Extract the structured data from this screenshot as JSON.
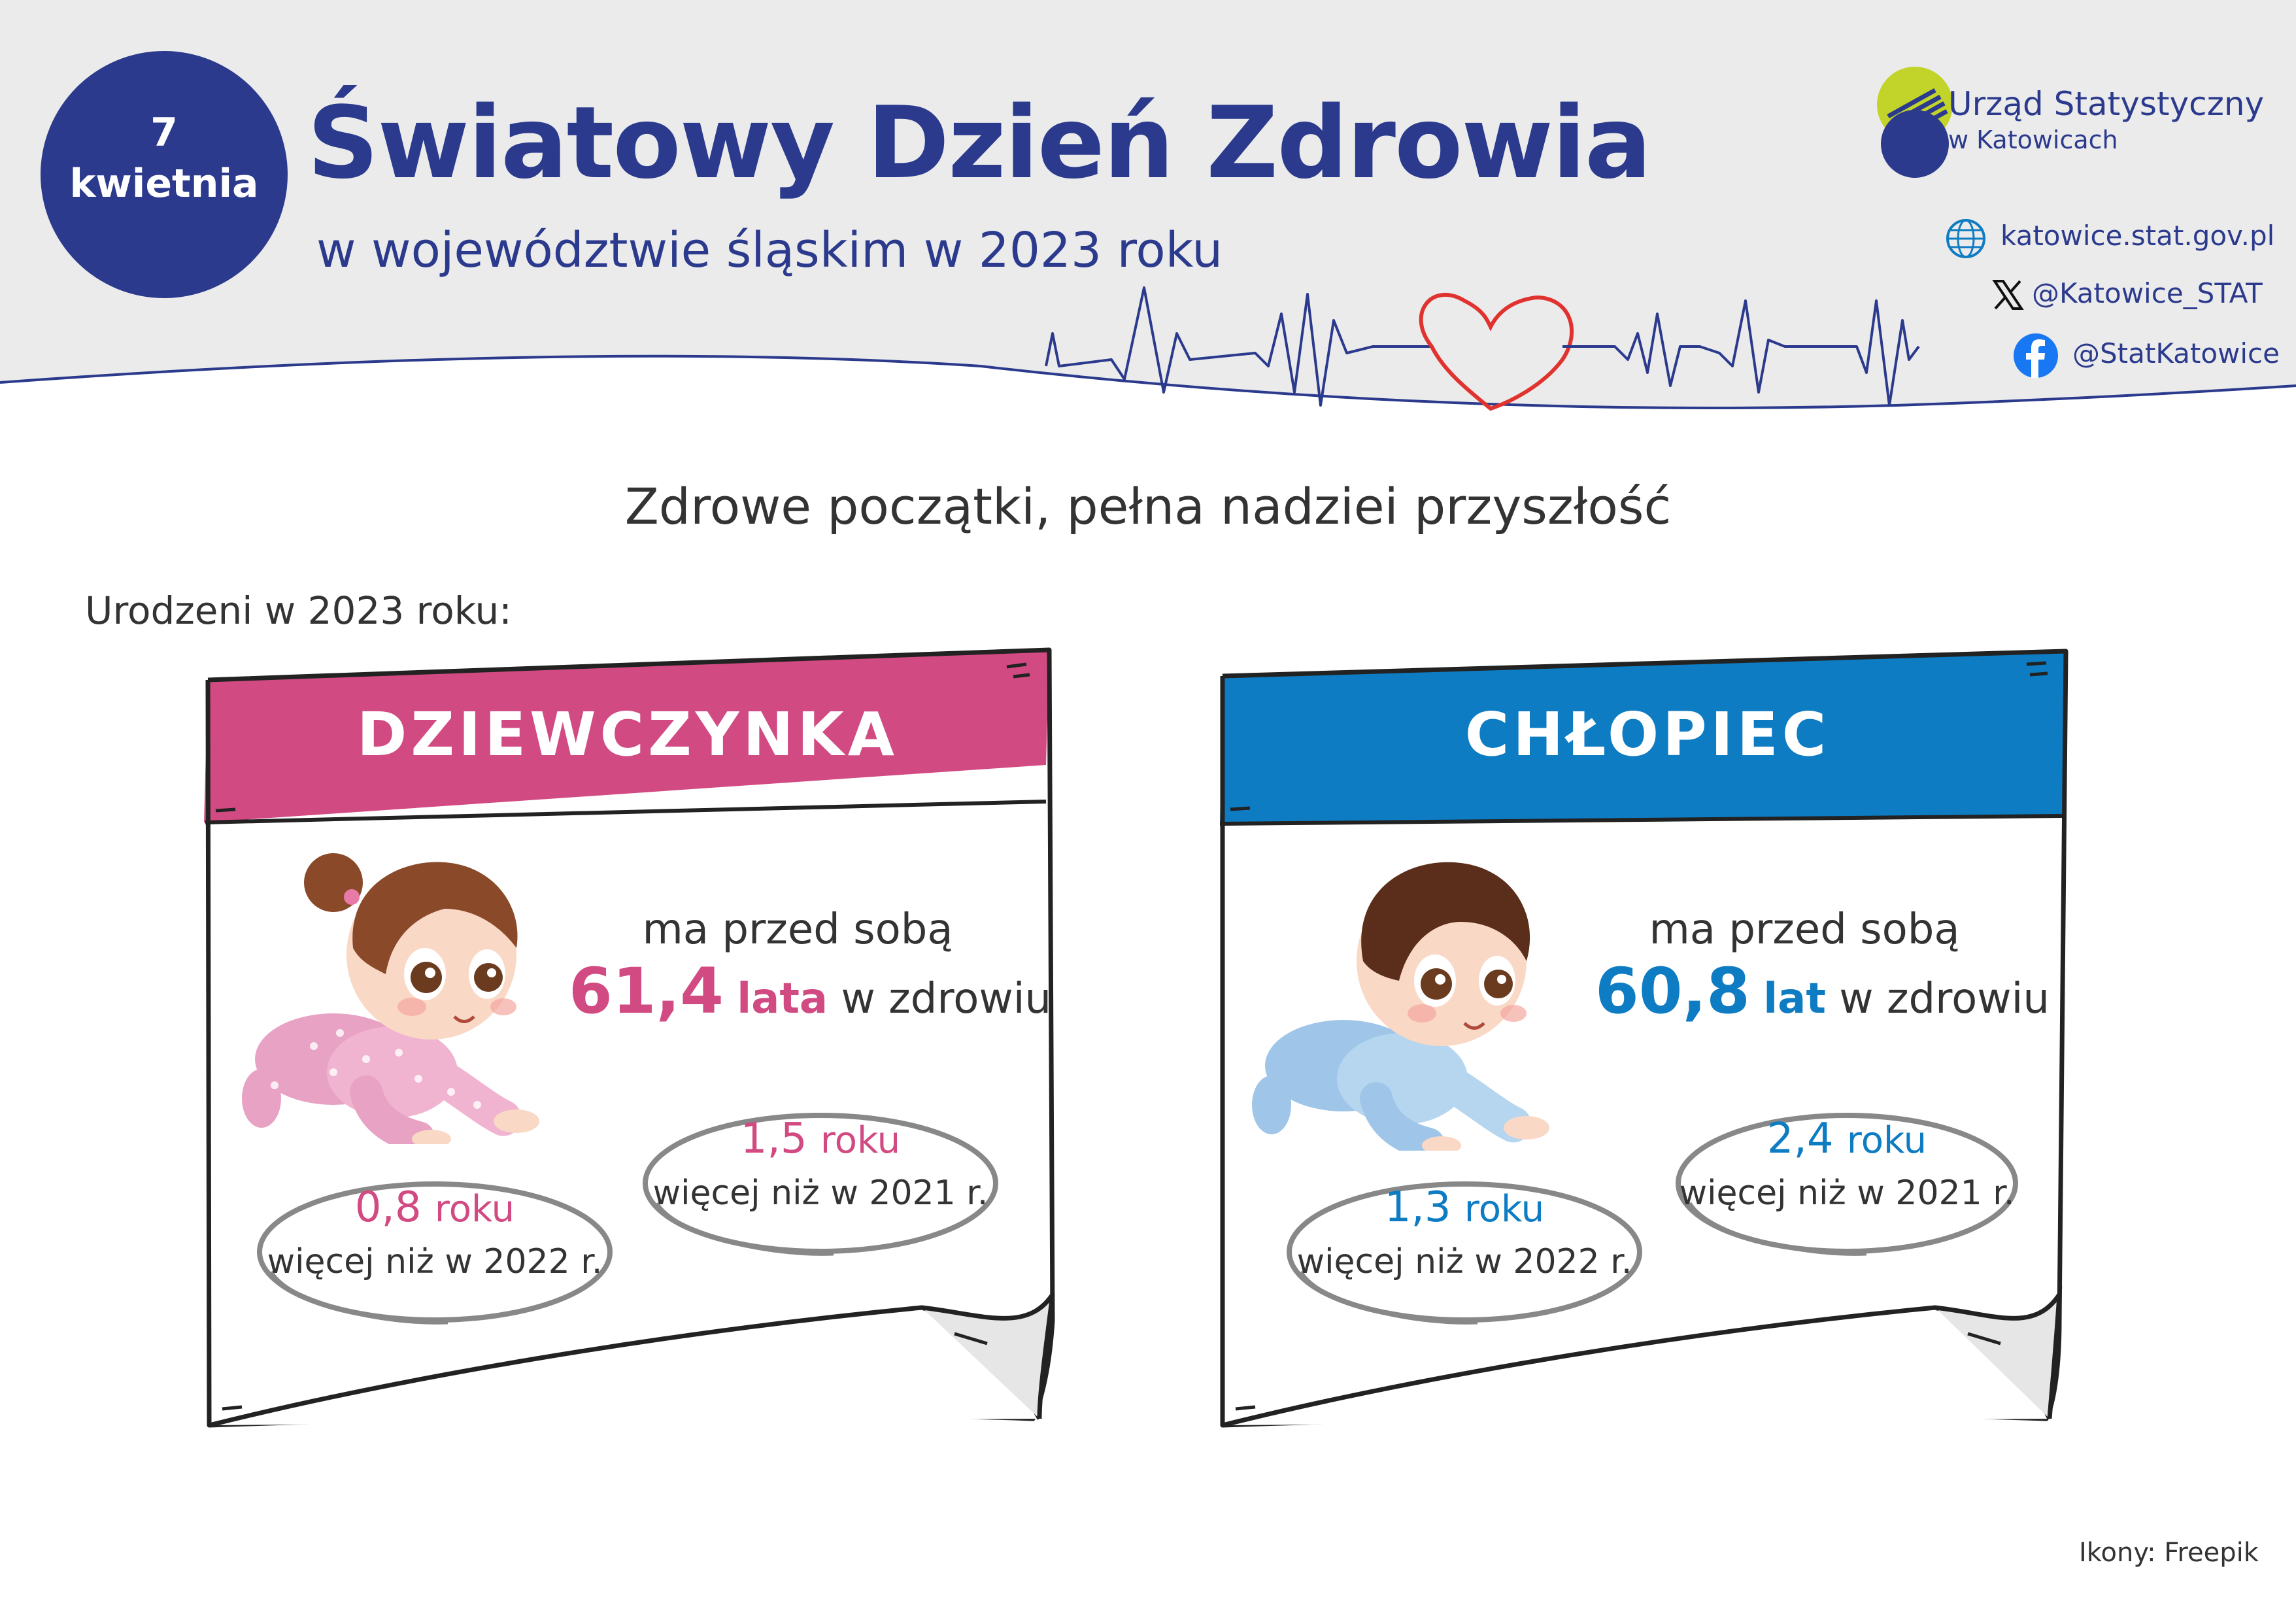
{
  "header": {
    "date_day": "7",
    "date_month": "kwietnia",
    "title": "Światowy Dzień Zdrowia",
    "subtitle": "w województwie śląskim w 2023 roku"
  },
  "organization": {
    "name_line1": "Urząd Statystyczny",
    "name_line2": "w Katowicach",
    "website": "katowice.stat.gov.pl",
    "twitter": "@Katowice_STAT",
    "facebook": "@StatKatowice"
  },
  "main": {
    "heading": "Zdrowe początki, pełna nadziei przyszłość",
    "born_label": "Urodzeni w 2023 roku:"
  },
  "girl": {
    "title": "DZIEWCZYNKA",
    "lead": "ma przed sobą",
    "years": "61,4",
    "years_unit": "lata",
    "health_suffix": "w zdrowiu",
    "vs2021_value": "1,5",
    "vs2021_unit": "roku",
    "vs2021_note": "więcej niż w 2021 r.",
    "vs2022_value": "0,8",
    "vs2022_unit": "roku",
    "vs2022_note": "więcej niż w 2022 r."
  },
  "boy": {
    "title": "CHŁOPIEC",
    "lead": "ma przed sobą",
    "years": "60,8",
    "years_unit": "lat",
    "health_suffix": "w zdrowiu",
    "vs2021_value": "2,4",
    "vs2021_unit": "roku",
    "vs2021_note": "więcej niż w 2021 r.",
    "vs2022_value": "1,3",
    "vs2022_unit": "roku",
    "vs2022_note": "więcej niż w 2022 r."
  },
  "footer": {
    "credit": "Ikony: Freepik"
  },
  "colors": {
    "navy": "#2b3a8c",
    "pink": "#d14a82",
    "blue": "#0e7cc2",
    "header_grey": "#ebebec",
    "heart_red": "#e0332f",
    "logo_green": "#c2d32a"
  }
}
